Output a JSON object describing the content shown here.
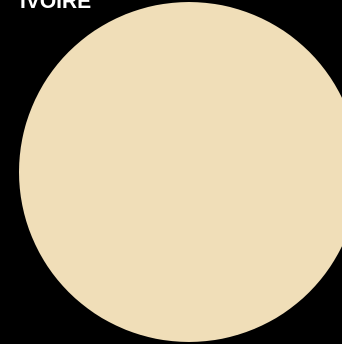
{
  "color_name": "IVOIRE",
  "swatch_color": "#F0DEB8",
  "background_color": "#000000"
}
